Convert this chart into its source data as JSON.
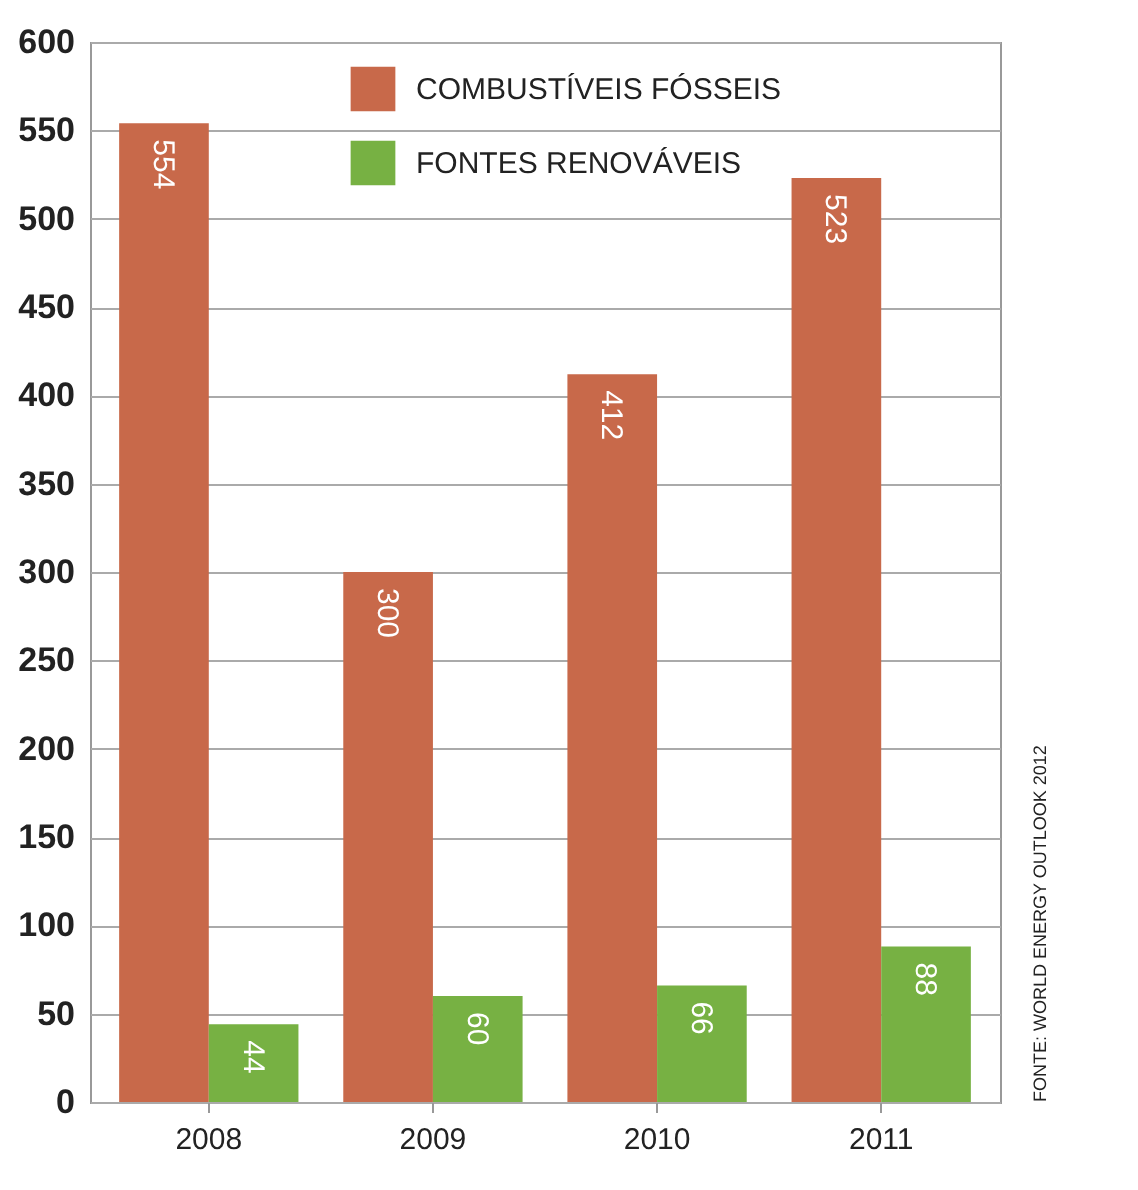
{
  "chart_data": {
    "type": "bar",
    "categories": [
      "2008",
      "2009",
      "2010",
      "2011"
    ],
    "series": [
      {
        "name": "COMBUSTÍVEIS  FÓSSEIS",
        "color": "#c8694a",
        "values": [
          554,
          300,
          412,
          523
        ]
      },
      {
        "name": "FONTES RENOVÁVEIS",
        "color": "#77b143",
        "values": [
          44,
          60,
          66,
          88
        ]
      }
    ],
    "ylim": [
      0,
      600
    ],
    "yticks": [
      0,
      50,
      100,
      150,
      200,
      250,
      300,
      350,
      400,
      450,
      500,
      550,
      600
    ],
    "grid": "y",
    "legend": "top",
    "data_labels": true,
    "annotations": [
      "FONTE: WORLD ENERGY OUTLOOK 2012"
    ]
  }
}
